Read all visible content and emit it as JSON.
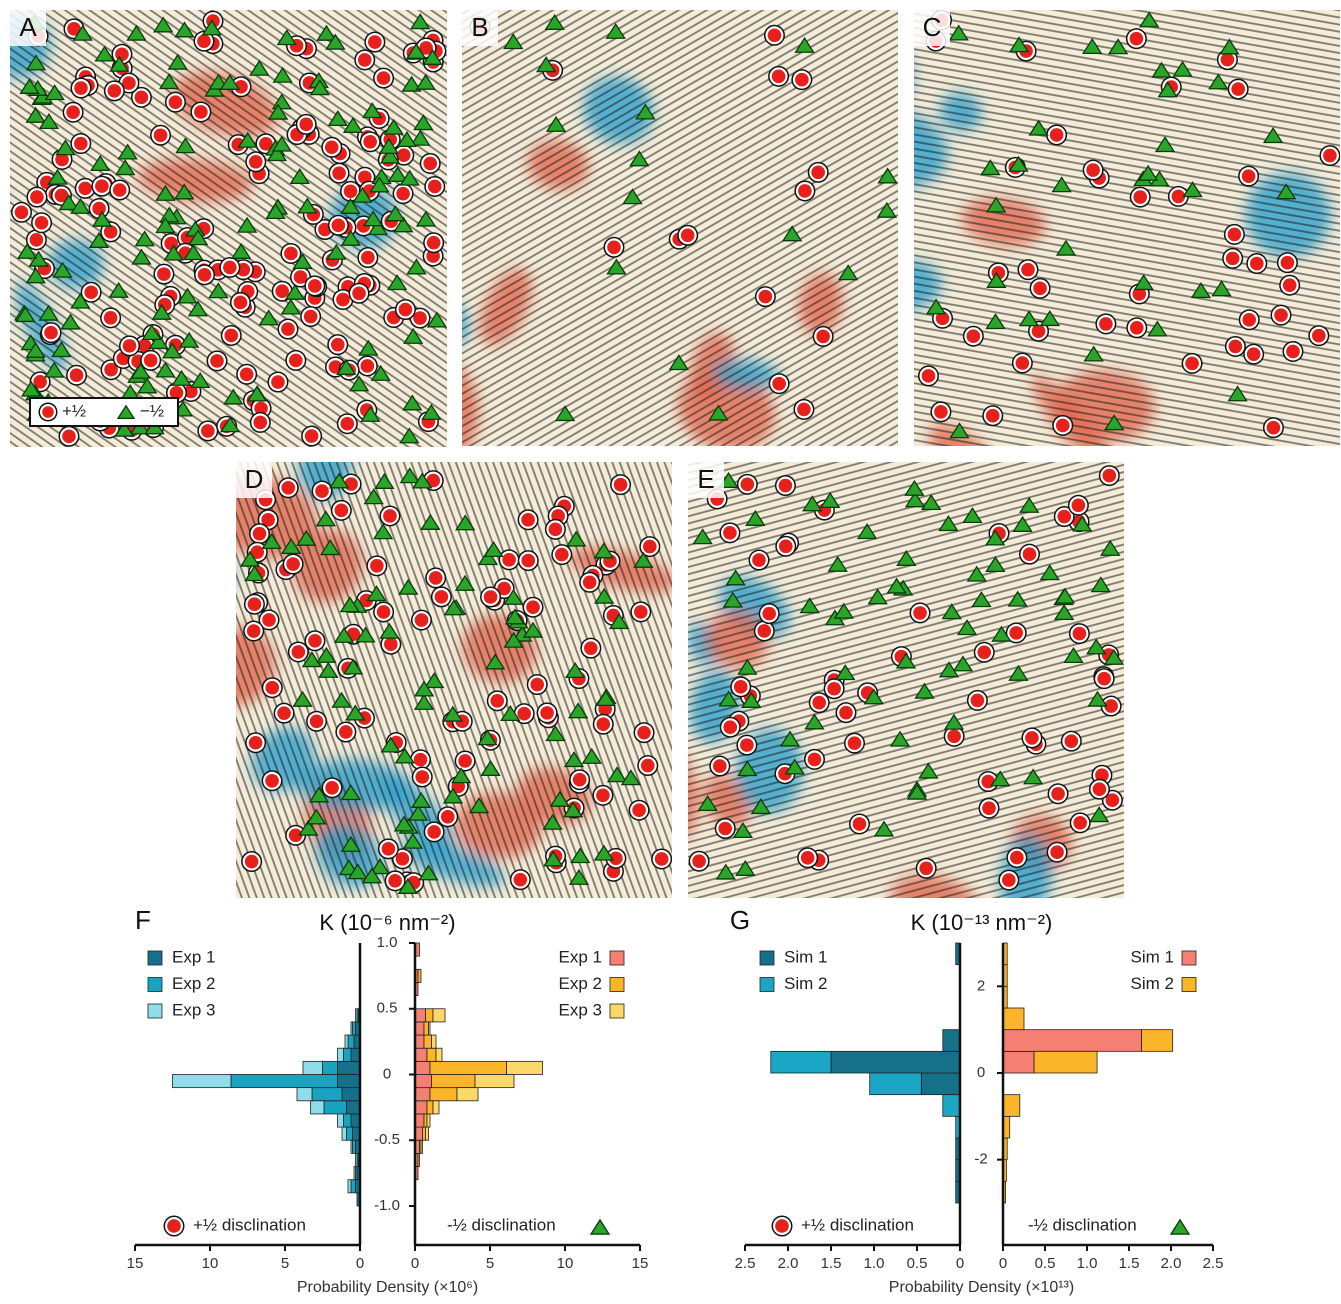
{
  "panels": [
    {
      "label": "A"
    },
    {
      "label": "B"
    },
    {
      "label": "C"
    },
    {
      "label": "D"
    },
    {
      "label": "E"
    }
  ],
  "map_legend": {
    "plus": "+½",
    "minus": "−½"
  },
  "chart_data": [
    {
      "type": "histogram",
      "label": "F",
      "title": "K (10⁻⁶ nm⁻²)",
      "xlabel": "Probability Density (×10⁶)",
      "bins": [
        -1.0,
        -0.9,
        -0.8,
        -0.7,
        -0.6,
        -0.5,
        -0.4,
        -0.3,
        -0.2,
        -0.1,
        0,
        0.1,
        0.2,
        0.3,
        0.4,
        0.5,
        0.6,
        0.7,
        0.8,
        0.9,
        1.0
      ],
      "ylim": [
        -1.0,
        1.0
      ],
      "yticks": [
        {
          "value": 1,
          "label": "1.0"
        },
        0.5,
        0,
        -0.5,
        {
          "value": -1,
          "label": "-1.0"
        }
      ],
      "left": {
        "label": "+½ disclination",
        "xlim": [
          0,
          15
        ],
        "x_reversed": true,
        "xticks": [
          15,
          10,
          5,
          0
        ],
        "series": [
          {
            "name": "Exp 1",
            "color": "#16708c",
            "values": [
              0.2,
              0.3,
              0.2,
              0.1,
              0.3,
              0.5,
              0.6,
              0.9,
              1.2,
              1.5,
              1.5,
              0.6,
              0.4,
              0.3,
              0.1,
              0,
              0,
              0,
              0,
              0
            ]
          },
          {
            "name": "Exp 2",
            "color": "#1aa3c1",
            "values": [
              0,
              0.3,
              0.1,
              0.1,
              0.2,
              0.4,
              0.5,
              1.5,
              2.0,
              7.1,
              1.0,
              0.5,
              0.4,
              0.2,
              0.1,
              0,
              0,
              0,
              0,
              0
            ]
          },
          {
            "name": "Exp 3",
            "color": "#8fdcea",
            "values": [
              0,
              0.2,
              0.1,
              0.1,
              0.1,
              0.3,
              0.4,
              0.9,
              1.0,
              3.9,
              1.3,
              0.4,
              0.2,
              0.1,
              0.1,
              0,
              0,
              0,
              0,
              0
            ]
          }
        ]
      },
      "right": {
        "label": "-½ disclination",
        "xlim": [
          0,
          15
        ],
        "x_reversed": false,
        "xticks": [
          0,
          5,
          10,
          15
        ],
        "series": [
          {
            "name": "Exp 1",
            "color": "#f47f72",
            "values": [
              0,
              0,
              0.2,
              0.2,
              0.3,
              0.5,
              0.6,
              0.8,
              1.0,
              1.1,
              1.0,
              0.8,
              0.6,
              0.6,
              0.7,
              0,
              0.2,
              0.2,
              0,
              0.3
            ]
          },
          {
            "name": "Exp 2",
            "color": "#fbb528",
            "values": [
              0,
              0,
              0,
              0.1,
              0.1,
              0.2,
              0.2,
              0.4,
              1.8,
              2.9,
              5.1,
              0.6,
              0.5,
              0.3,
              0.5,
              0,
              0,
              0.2,
              0,
              0
            ]
          },
          {
            "name": "Exp 3",
            "color": "#fcd868",
            "values": [
              0,
              0,
              0,
              0,
              0.1,
              0.2,
              0.2,
              0.4,
              1.4,
              2.6,
              2.4,
              0.4,
              0.3,
              0.1,
              0.8,
              0,
              0,
              0,
              0,
              0
            ]
          }
        ]
      }
    },
    {
      "type": "histogram",
      "label": "G",
      "title": "K (10⁻¹³ nm⁻²)",
      "xlabel": "Probability Density (×10¹³)",
      "bins": [
        -3,
        -2.5,
        -2,
        -1.5,
        -1,
        -0.5,
        0,
        0.5,
        1,
        1.5,
        2,
        2.5,
        3
      ],
      "ylim": [
        -3,
        3
      ],
      "yticks": [
        2,
        0,
        -2
      ],
      "left": {
        "label": "+½ disclination",
        "xlim": [
          0,
          2.5
        ],
        "x_reversed": true,
        "xticks": [
          2.5,
          {
            "value": 2,
            "label": "2.0"
          },
          1.5,
          {
            "value": 1,
            "label": "1.0"
          },
          0.5,
          0
        ],
        "series": [
          {
            "name": "Sim 1",
            "color": "#16708a",
            "values": [
              0.05,
              0.05,
              0.05,
              0,
              0,
              0.45,
              1.5,
              0.2,
              0,
              0,
              0,
              0.05
            ]
          },
          {
            "name": "Sim 2",
            "color": "#1ca6c5",
            "values": [
              0,
              0,
              0,
              0.05,
              0.2,
              0.6,
              0.7,
              0,
              0,
              0,
              0,
              0
            ]
          }
        ]
      },
      "right": {
        "label": "-½ disclination",
        "xlim": [
          0,
          2.5
        ],
        "x_reversed": false,
        "xticks": [
          0,
          0.5,
          {
            "value": 1,
            "label": "1.0"
          },
          1.5,
          {
            "value": 2,
            "label": "2.0"
          },
          2.5
        ],
        "series": [
          {
            "name": "Sim 1",
            "color": "#f47f72",
            "values": [
              0,
              0,
              0,
              0,
              0,
              0,
              0.37,
              1.65,
              0,
              0,
              0,
              0
            ]
          },
          {
            "name": "Sim 2",
            "color": "#fbb528",
            "values": [
              0.03,
              0.04,
              0.05,
              0.08,
              0.2,
              0,
              0.75,
              0.37,
              0.25,
              0.05,
              0.05,
              0.05
            ]
          }
        ]
      }
    }
  ]
}
